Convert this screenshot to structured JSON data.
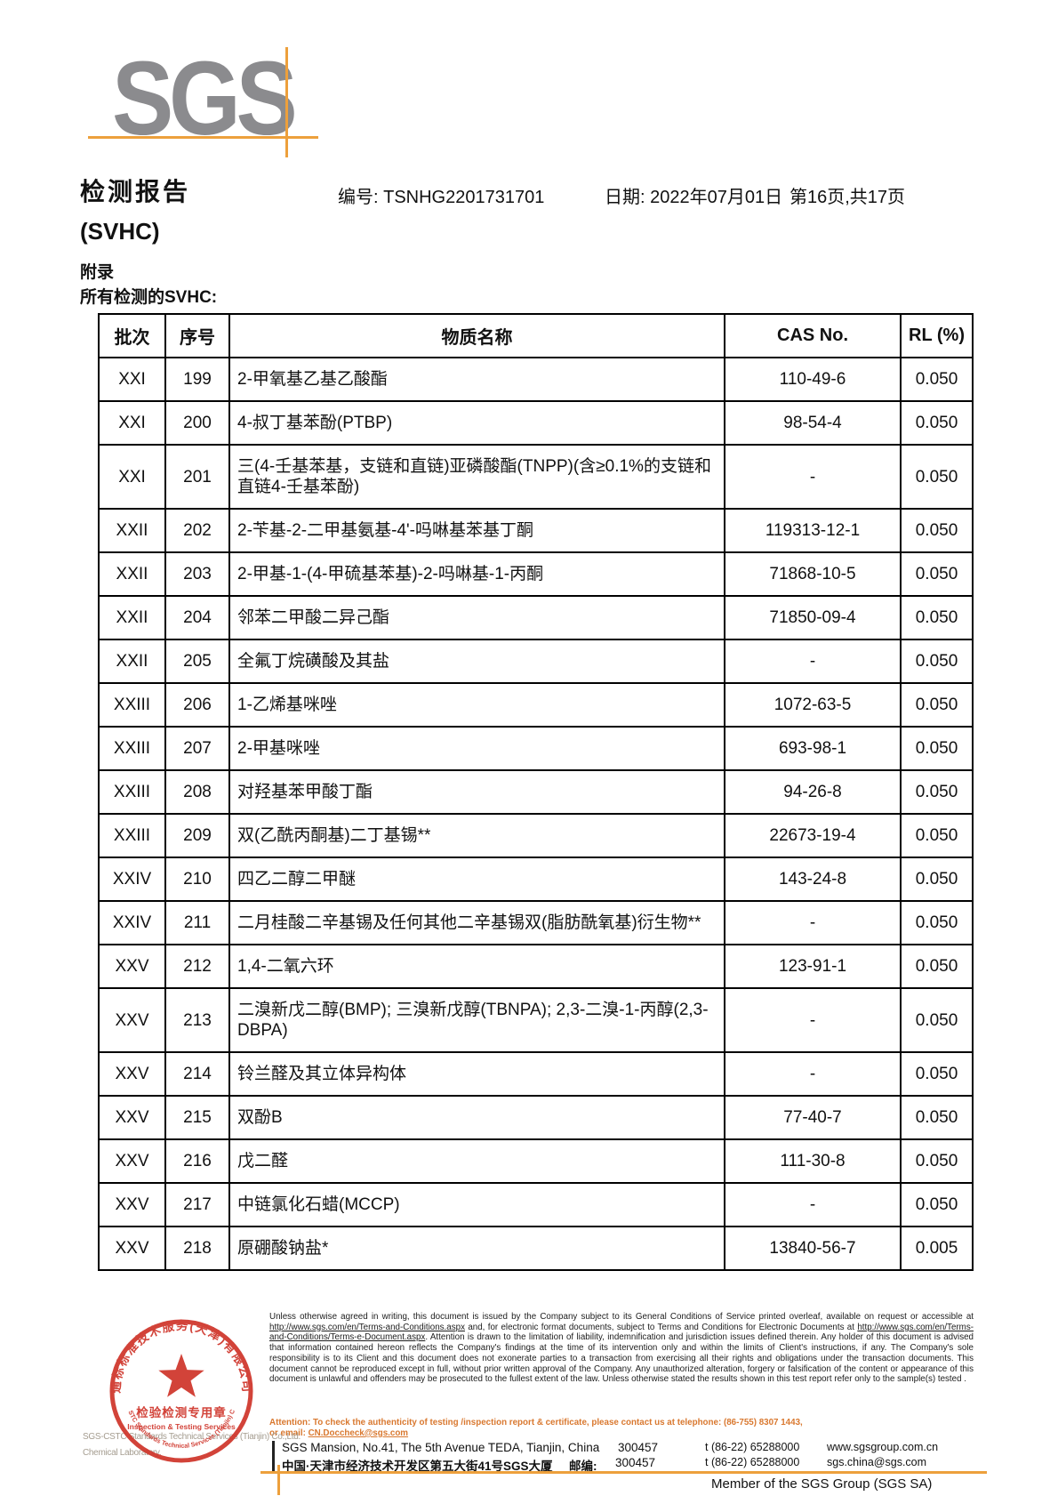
{
  "header": {
    "logo_text": "SGS",
    "title_line1": "检测报告",
    "title_line2": "(SVHC)",
    "appendix": "附录",
    "table_caption": "所有检测的SVHC:",
    "report_no": "编号: TSNHG2201731701",
    "date": "日期: 2022年07月01日",
    "page_info": "第16页,共17页"
  },
  "table": {
    "columns": [
      "批次",
      "序号",
      "物质名称",
      "CAS No.",
      "RL (%)"
    ],
    "rows": [
      [
        "XXI",
        "199",
        "2-甲氧基乙基乙酸酯",
        "110-49-6",
        "0.050"
      ],
      [
        "XXI",
        "200",
        "4-叔丁基苯酚(PTBP)",
        "98-54-4",
        "0.050"
      ],
      [
        "XXI",
        "201",
        "三(4-壬基苯基，支链和直链)亚磷酸酯(TNPP)(含≥0.1%的支链和直链4-壬基苯酚)",
        "-",
        "0.050"
      ],
      [
        "XXII",
        "202",
        "2-苄基-2-二甲基氨基-4'-吗啉基苯基丁酮",
        "119313-12-1",
        "0.050"
      ],
      [
        "XXII",
        "203",
        "2-甲基-1-(4-甲硫基苯基)-2-吗啉基-1-丙酮",
        "71868-10-5",
        "0.050"
      ],
      [
        "XXII",
        "204",
        "邻苯二甲酸二异己酯",
        "71850-09-4",
        "0.050"
      ],
      [
        "XXII",
        "205",
        "全氟丁烷磺酸及其盐",
        "-",
        "0.050"
      ],
      [
        "XXIII",
        "206",
        "1-乙烯基咪唑",
        "1072-63-5",
        "0.050"
      ],
      [
        "XXIII",
        "207",
        "2-甲基咪唑",
        "693-98-1",
        "0.050"
      ],
      [
        "XXIII",
        "208",
        "对羟基苯甲酸丁酯",
        "94-26-8",
        "0.050"
      ],
      [
        "XXIII",
        "209",
        "双(乙酰丙酮基)二丁基锡**",
        "22673-19-4",
        "0.050"
      ],
      [
        "XXIV",
        "210",
        "四乙二醇二甲醚",
        "143-24-8",
        "0.050"
      ],
      [
        "XXIV",
        "211",
        "二月桂酸二辛基锡及任何其他二辛基锡双(脂肪酰氧基)衍生物**",
        "-",
        "0.050"
      ],
      [
        "XXV",
        "212",
        "1,4-二氧六环",
        "123-91-1",
        "0.050"
      ],
      [
        "XXV",
        "213",
        "二溴新戊二醇(BMP); 三溴新戊醇(TBNPA); 2,3-二溴-1-丙醇(2,3-DBPA)",
        "-",
        "0.050"
      ],
      [
        "XXV",
        "214",
        "铃兰醛及其立体异构体",
        "-",
        "0.050"
      ],
      [
        "XXV",
        "215",
        "双酚B",
        "77-40-7",
        "0.050"
      ],
      [
        "XXV",
        "216",
        "戊二醛",
        "111-30-8",
        "0.050"
      ],
      [
        "XXV",
        "217",
        "中链氯化石蜡(MCCP)",
        "-",
        "0.050"
      ],
      [
        "XXV",
        "218",
        "原硼酸钠盐*",
        "13840-56-7",
        "0.005"
      ]
    ]
  },
  "footer": {
    "disclaimer_part1": "Unless otherwise agreed in writing, this document is issued by the Company subject to its General Conditions of Service printed overleaf, available on request or accessible at ",
    "disclaimer_url1": "http://www.sgs.com/en/Terms-and-Conditions.aspx",
    "disclaimer_part2": " and, for electronic format documents, subject to Terms and Conditions for Electronic Documents at ",
    "disclaimer_url2": "http://www.sgs.com/en/Terms-and-Conditions/Terms-e-Document.aspx",
    "disclaimer_part3": ". Attention is drawn to the limitation of liability, indemnification and jurisdiction issues defined therein. Any holder of this document is advised that information contained hereon reflects the Company's findings at the time of its intervention only and within the limits of Client's instructions, if any. The Company's sole responsibility is to its Client and this document does not exonerate parties to a transaction from exercising all their rights and obligations under the transaction documents. This document cannot be reproduced except in full, without prior written approval of the Company. Any unauthorized alteration, forgery or falsification of the content or appearance of this document is unlawful and offenders may be prosecuted to the fullest extent of the law. Unless otherwise stated the results shown in this test report refer only to the sample(s) tested .",
    "attention_line1": "Attention: To check the authenticity of testing /inspection report & certificate, please contact us at telephone: (86-755) 8307 1443,",
    "attention_line2_prefix": "or email: ",
    "attention_email": "CN.Doccheck@sgs.com",
    "address_en": "SGS Mansion, No.41, The 5th Avenue TEDA, Tianjin, China",
    "postcode_en": "300457",
    "address_cn": "中国·天津市经济技术开发区第五大街41号SGS大厦",
    "postcode_label_cn": "邮编:",
    "postcode_cn": "300457",
    "phone1": "t (86-22) 65288000",
    "phone2": "t (86-22) 65288000",
    "website": "www.sgsgroup.com.cn",
    "email": "sgs.china@sgs.com",
    "member_text": "Member of the SGS Group (SGS SA)",
    "company_gray_line1": "SGS-CSTC Standards Technical Services (Tianjin) Co.,Ltd.",
    "company_gray_line2": "Chemical Laboratory.",
    "stamp": {
      "arc_top": "通标标准技术服务(天津)有限公司",
      "center_cn": "检验检测专用章",
      "center_en": "Inspection & Testing Services",
      "arc_bottom": "SGS-CSTC Standards Technical Services (Tianjin) Co.,Ltd."
    },
    "colors": {
      "sgs_orange": "#eda03c",
      "attention_orange": "#d9782f",
      "stamp_red": "#cf352b",
      "logo_gray": "#8b8b8e"
    }
  }
}
